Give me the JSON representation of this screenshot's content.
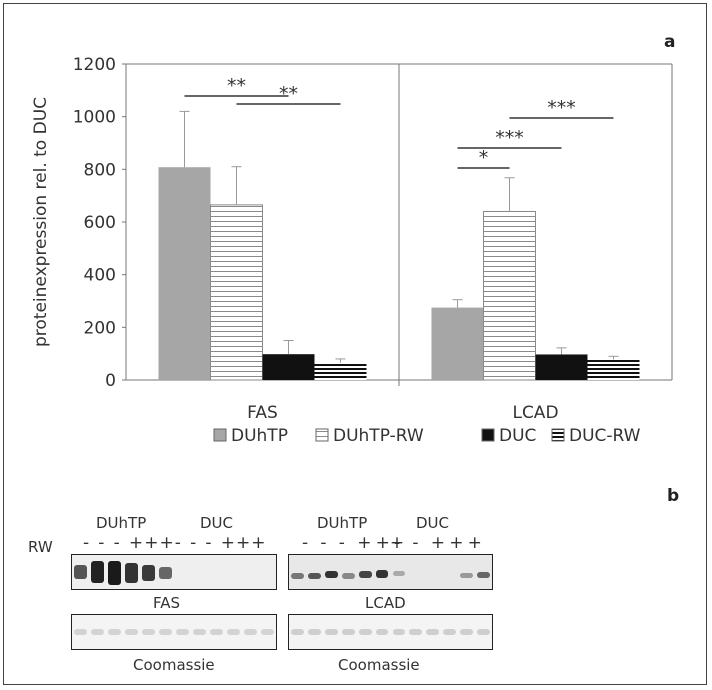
{
  "panel_a_label": "a",
  "panel_b_label": "b",
  "chart_data": {
    "type": "bar",
    "categories": [
      "FAS",
      "LCAD"
    ],
    "ylabel": "proteinexpression rel. to DUC",
    "ylim": [
      0,
      1200
    ],
    "yticks": [
      0,
      200,
      400,
      600,
      800,
      1000,
      1200
    ],
    "grid": false,
    "legend_position": "bottom",
    "series": [
      {
        "name": "DUhTP",
        "values": [
          808,
          275
        ],
        "errors": [
          212,
          30
        ],
        "color": "#a6a6a6",
        "pattern": "solid"
      },
      {
        "name": "DUhTP-RW",
        "values": [
          665,
          640
        ],
        "errors": [
          145,
          128
        ],
        "color": "#ffffff",
        "pattern": "horizontal-lines"
      },
      {
        "name": "DUC",
        "values": [
          98,
          97
        ],
        "errors": [
          52,
          25
        ],
        "color": "#111111",
        "pattern": "solid"
      },
      {
        "name": "DUC-RW",
        "values": [
          66,
          78
        ],
        "errors": [
          14,
          12
        ],
        "color": "#111111",
        "pattern": "dense-horizontal-lines"
      }
    ],
    "significance": [
      {
        "group": "FAS",
        "from": "DUhTP",
        "to": "DUC",
        "label": "**"
      },
      {
        "group": "FAS",
        "from": "DUhTP-RW",
        "to": "DUC-RW",
        "label": "**"
      },
      {
        "group": "LCAD",
        "from": "DUhTP",
        "to": "DUhTP-RW",
        "label": "*"
      },
      {
        "group": "LCAD",
        "from": "DUhTP",
        "to": "DUC",
        "label": "***"
      },
      {
        "group": "LCAD",
        "from": "DUhTP-RW",
        "to": "DUC-RW",
        "label": "***"
      }
    ]
  },
  "blot": {
    "rw_label": "RW",
    "groups": [
      "DUhTP",
      "DUC",
      "DUhTP",
      "DUC"
    ],
    "left_signs": [
      "-",
      "-",
      "-",
      "+",
      "+",
      "+",
      "-",
      "-",
      "-",
      "+",
      "+",
      "+"
    ],
    "right_signs": [
      "-",
      "-",
      "-",
      "+",
      "++",
      "-",
      "-",
      "+",
      "+",
      "+"
    ],
    "fas_label": "FAS",
    "lcad_label": "LCAD",
    "coomassie_left": "Coomassie",
    "coomassie_right": "Coomassie"
  }
}
